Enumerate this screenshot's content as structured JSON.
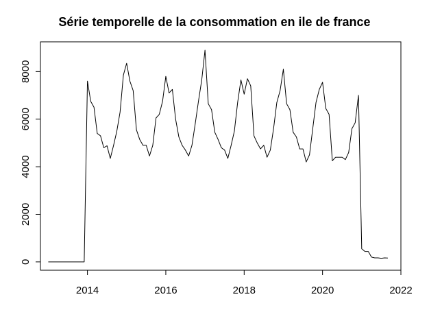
{
  "chart_data": {
    "type": "line",
    "title": "Série temporelle de la consommation en ile de france",
    "xlabel": "",
    "ylabel": "",
    "xlim": [
      2012.8,
      2022.0
    ],
    "ylim": [
      -350,
      9250
    ],
    "grid": false,
    "legend": "none",
    "x_ticks": [
      2014,
      2016,
      2018,
      2020,
      2022
    ],
    "x_tick_labels": [
      "2014",
      "2016",
      "2018",
      "2020",
      "2022"
    ],
    "y_ticks": [
      0,
      2000,
      4000,
      6000,
      8000
    ],
    "y_tick_labels": [
      "0",
      "2000",
      "4000",
      "6000",
      "8000"
    ],
    "line_color": "#000000",
    "series": [
      {
        "x": [
          2013.0,
          2013.083,
          2013.167,
          2013.25,
          2013.333,
          2013.417,
          2013.5,
          2013.583,
          2013.667,
          2013.75,
          2013.833,
          2013.917,
          2014.0,
          2014.083,
          2014.167,
          2014.25,
          2014.333,
          2014.417,
          2014.5,
          2014.583,
          2014.667,
          2014.75,
          2014.833,
          2014.917,
          2015.0,
          2015.083,
          2015.167,
          2015.25,
          2015.333,
          2015.417,
          2015.5,
          2015.583,
          2015.667,
          2015.75,
          2015.833,
          2015.917,
          2016.0,
          2016.083,
          2016.167,
          2016.25,
          2016.333,
          2016.417,
          2016.5,
          2016.583,
          2016.667,
          2016.75,
          2016.833,
          2016.917,
          2017.0,
          2017.083,
          2017.167,
          2017.25,
          2017.333,
          2017.417,
          2017.5,
          2017.583,
          2017.667,
          2017.75,
          2017.833,
          2017.917,
          2018.0,
          2018.083,
          2018.167,
          2018.25,
          2018.333,
          2018.417,
          2018.5,
          2018.583,
          2018.667,
          2018.75,
          2018.833,
          2018.917,
          2019.0,
          2019.083,
          2019.167,
          2019.25,
          2019.333,
          2019.417,
          2019.5,
          2019.583,
          2019.667,
          2019.75,
          2019.833,
          2019.917,
          2020.0,
          2020.083,
          2020.167,
          2020.25,
          2020.333,
          2020.417,
          2020.5,
          2020.583,
          2020.667,
          2020.75,
          2020.833,
          2020.917,
          2021.0,
          2021.083,
          2021.167,
          2021.25,
          2021.333,
          2021.417,
          2021.5,
          2021.583,
          2021.667
        ],
        "y": [
          0,
          0,
          0,
          0,
          0,
          0,
          0,
          0,
          0,
          0,
          0,
          0,
          7600,
          6750,
          6500,
          5400,
          5300,
          4800,
          4880,
          4350,
          4900,
          5500,
          6300,
          7850,
          8350,
          7600,
          7200,
          5550,
          5150,
          4900,
          4900,
          4450,
          4900,
          6050,
          6200,
          6750,
          7800,
          7100,
          7250,
          6000,
          5250,
          4900,
          4700,
          4450,
          4900,
          5800,
          6750,
          7650,
          8900,
          6650,
          6400,
          5450,
          5150,
          4800,
          4700,
          4350,
          4900,
          5500,
          6700,
          7650,
          7050,
          7700,
          7400,
          5300,
          5000,
          4750,
          4900,
          4400,
          4700,
          5600,
          6700,
          7200,
          8100,
          6650,
          6400,
          5450,
          5250,
          4750,
          4750,
          4200,
          4500,
          5600,
          6700,
          7250,
          7550,
          6450,
          6200,
          4250,
          4400,
          4400,
          4400,
          4300,
          4600,
          5600,
          5850,
          7000,
          550,
          440,
          440,
          200,
          170,
          170,
          150,
          170,
          160
        ]
      }
    ]
  }
}
